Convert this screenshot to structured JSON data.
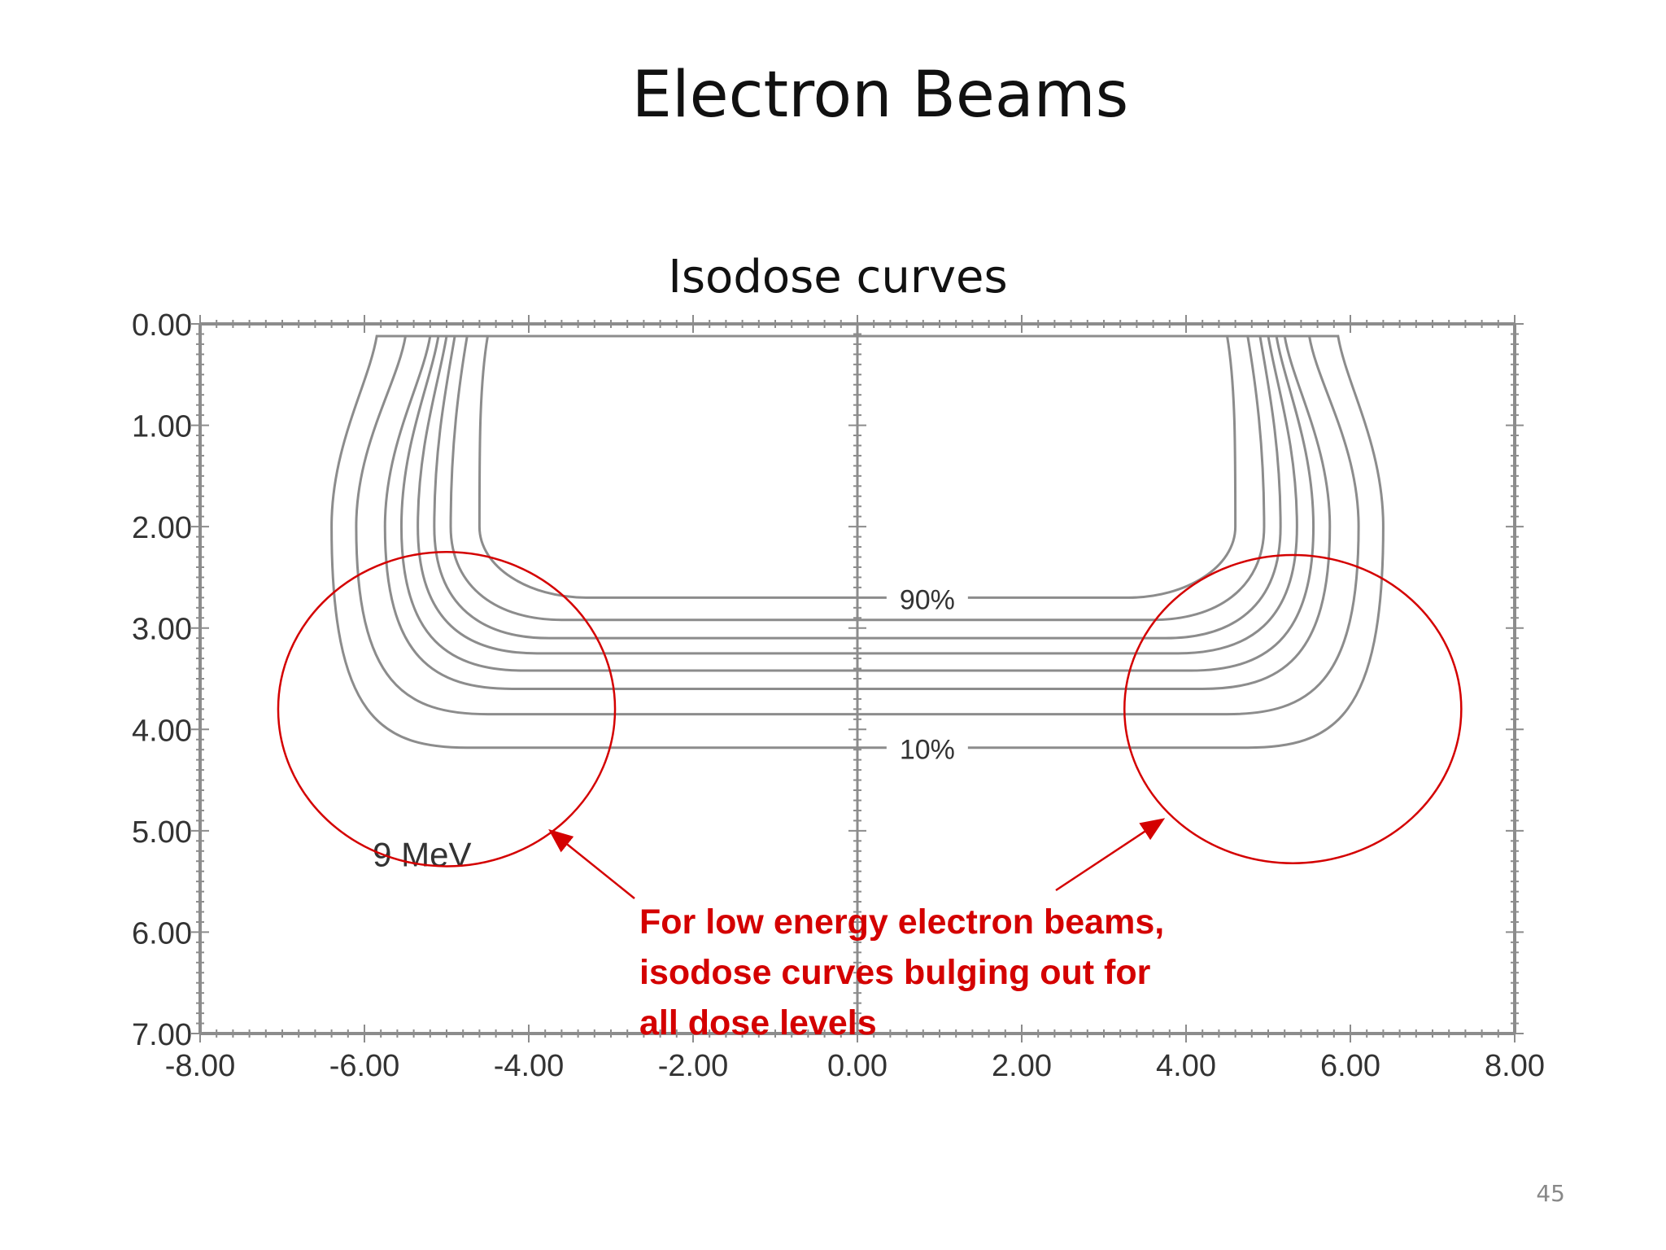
{
  "slide": {
    "title": "Electron Beams",
    "subtitle": "Isodose curves",
    "page_number": "45"
  },
  "figure": {
    "energy_label": "9 MeV",
    "curve_labels": [
      "90%",
      "10%"
    ],
    "annotation_lines": [
      "For low energy electron beams,",
      "isodose curves bulging out for",
      "all dose levels"
    ],
    "colors": {
      "curves": "#8c8c8c",
      "axes": "#8c8c8c",
      "highlight": "#d40000",
      "annotation": "#d40000"
    }
  },
  "chart_data": {
    "type": "contour",
    "x_ticks": [
      "-8.00",
      "-6.00",
      "-4.00",
      "-2.00",
      "0.00",
      "2.00",
      "4.00",
      "6.00",
      "8.00"
    ],
    "y_ticks": [
      "0.00",
      "1.00",
      "2.00",
      "3.00",
      "4.00",
      "5.00",
      "6.00",
      "7.00"
    ],
    "xlim": [
      -8,
      8
    ],
    "ylim": [
      0,
      7
    ],
    "y_inverted": true,
    "isodose_curves": [
      {
        "label": "90%",
        "half_width_surface": 4.5,
        "half_width_mid": 4.6,
        "depth_bottom": 2.7
      },
      {
        "label": "",
        "half_width_surface": 4.75,
        "half_width_mid": 4.95,
        "depth_bottom": 2.92
      },
      {
        "label": "",
        "half_width_surface": 4.9,
        "half_width_mid": 5.15,
        "depth_bottom": 3.1
      },
      {
        "label": "",
        "half_width_surface": 5.0,
        "half_width_mid": 5.35,
        "depth_bottom": 3.25
      },
      {
        "label": "",
        "half_width_surface": 5.1,
        "half_width_mid": 5.55,
        "depth_bottom": 3.42
      },
      {
        "label": "",
        "half_width_surface": 5.2,
        "half_width_mid": 5.75,
        "depth_bottom": 3.6
      },
      {
        "label": "",
        "half_width_surface": 5.5,
        "half_width_mid": 6.1,
        "depth_bottom": 3.85
      },
      {
        "label": "10%",
        "half_width_surface": 5.85,
        "half_width_mid": 6.4,
        "depth_bottom": 4.18
      }
    ],
    "highlight_regions": [
      {
        "center_x": -5.0,
        "center_y": 3.8,
        "radius_x": 2.05,
        "radius_y": 1.55
      },
      {
        "center_x": 5.3,
        "center_y": 3.8,
        "radius_x": 2.05,
        "radius_y": 1.52
      }
    ]
  }
}
